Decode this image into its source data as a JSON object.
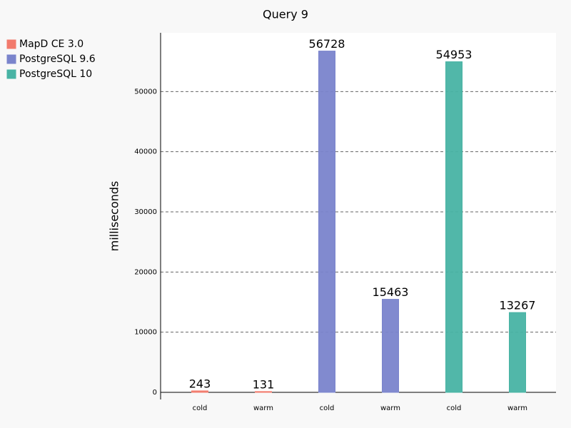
{
  "chart_data": {
    "type": "bar",
    "title": "Query 9",
    "ylabel": "milliseconds",
    "categories": [
      "cold",
      "warm",
      "cold",
      "warm",
      "cold",
      "warm"
    ],
    "series": [
      {
        "name": "MapD CE 3.0",
        "color": "#f27a6c",
        "values": [
          243,
          131,
          null,
          null,
          null,
          null
        ]
      },
      {
        "name": "PostgreSQL 9.6",
        "color": "#7a84cc",
        "values": [
          null,
          null,
          56728,
          15463,
          null,
          null
        ]
      },
      {
        "name": "PostgreSQL 10",
        "color": "#48b3a4",
        "values": [
          null,
          null,
          null,
          null,
          54953,
          13267
        ]
      }
    ],
    "ylim": [
      0,
      60000
    ],
    "yticks": [
      0,
      10000,
      20000,
      30000,
      40000,
      50000
    ],
    "grid": true,
    "legend": "upper left"
  }
}
